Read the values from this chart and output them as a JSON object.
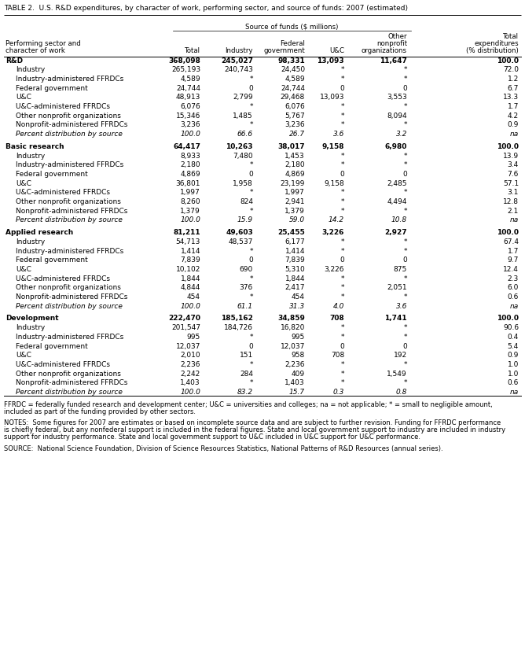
{
  "title": "TABLE 2.  U.S. R&D expenditures, by character of work, performing sector, and source of funds: 2007 (estimated)",
  "rows": [
    {
      "label": "R&D",
      "indent": 0,
      "bold": true,
      "spacer": false,
      "values": [
        "368,098",
        "245,027",
        "98,331",
        "13,093",
        "11,647",
        "100.0"
      ]
    },
    {
      "label": "Industry",
      "indent": 1,
      "bold": false,
      "spacer": false,
      "values": [
        "265,193",
        "240,743",
        "24,450",
        "*",
        "*",
        "72.0"
      ]
    },
    {
      "label": "Industry-administered FFRDCs",
      "indent": 1,
      "bold": false,
      "spacer": false,
      "values": [
        "4,589",
        "*",
        "4,589",
        "*",
        "*",
        "1.2"
      ]
    },
    {
      "label": "Federal government",
      "indent": 1,
      "bold": false,
      "spacer": false,
      "values": [
        "24,744",
        "0",
        "24,744",
        "0",
        "0",
        "6.7"
      ]
    },
    {
      "label": "U&C",
      "indent": 1,
      "bold": false,
      "spacer": false,
      "values": [
        "48,913",
        "2,799",
        "29,468",
        "13,093",
        "3,553",
        "13.3"
      ]
    },
    {
      "label": "U&C-administered FFRDCs",
      "indent": 1,
      "bold": false,
      "spacer": false,
      "values": [
        "6,076",
        "*",
        "6,076",
        "*",
        "*",
        "1.7"
      ]
    },
    {
      "label": "Other nonprofit organizations",
      "indent": 1,
      "bold": false,
      "spacer": false,
      "values": [
        "15,346",
        "1,485",
        "5,767",
        "*",
        "8,094",
        "4.2"
      ]
    },
    {
      "label": "Nonprofit-administered FFRDCs",
      "indent": 1,
      "bold": false,
      "spacer": false,
      "values": [
        "3,236",
        "*",
        "3,236",
        "*",
        "*",
        "0.9"
      ]
    },
    {
      "label": "Percent distribution by source",
      "indent": 1,
      "bold": false,
      "italic": true,
      "spacer": false,
      "values": [
        "100.0",
        "66.6",
        "26.7",
        "3.6",
        "3.2",
        "na"
      ]
    },
    {
      "label": "",
      "indent": 0,
      "bold": false,
      "spacer": true,
      "values": [
        "",
        "",
        "",
        "",
        "",
        ""
      ]
    },
    {
      "label": "Basic research",
      "indent": 0,
      "bold": true,
      "spacer": false,
      "values": [
        "64,417",
        "10,263",
        "38,017",
        "9,158",
        "6,980",
        "100.0"
      ]
    },
    {
      "label": "Industry",
      "indent": 1,
      "bold": false,
      "spacer": false,
      "values": [
        "8,933",
        "7,480",
        "1,453",
        "*",
        "*",
        "13.9"
      ]
    },
    {
      "label": "Industry-administered FFRDCs",
      "indent": 1,
      "bold": false,
      "spacer": false,
      "values": [
        "2,180",
        "*",
        "2,180",
        "*",
        "*",
        "3.4"
      ]
    },
    {
      "label": "Federal government",
      "indent": 1,
      "bold": false,
      "spacer": false,
      "values": [
        "4,869",
        "0",
        "4,869",
        "0",
        "0",
        "7.6"
      ]
    },
    {
      "label": "U&C",
      "indent": 1,
      "bold": false,
      "spacer": false,
      "values": [
        "36,801",
        "1,958",
        "23,199",
        "9,158",
        "2,485",
        "57.1"
      ]
    },
    {
      "label": "U&C-administered FFRDCs",
      "indent": 1,
      "bold": false,
      "spacer": false,
      "values": [
        "1,997",
        "*",
        "1,997",
        "*",
        "*",
        "3.1"
      ]
    },
    {
      "label": "Other nonprofit organizations",
      "indent": 1,
      "bold": false,
      "spacer": false,
      "values": [
        "8,260",
        "824",
        "2,941",
        "*",
        "4,494",
        "12.8"
      ]
    },
    {
      "label": "Nonprofit-administered FFRDCs",
      "indent": 1,
      "bold": false,
      "spacer": false,
      "values": [
        "1,379",
        "*",
        "1,379",
        "*",
        "*",
        "2.1"
      ]
    },
    {
      "label": "Percent distribution by source",
      "indent": 1,
      "bold": false,
      "italic": true,
      "spacer": false,
      "values": [
        "100.0",
        "15.9",
        "59.0",
        "14.2",
        "10.8",
        "na"
      ]
    },
    {
      "label": "",
      "indent": 0,
      "bold": false,
      "spacer": true,
      "values": [
        "",
        "",
        "",
        "",
        "",
        ""
      ]
    },
    {
      "label": "Applied research",
      "indent": 0,
      "bold": true,
      "spacer": false,
      "values": [
        "81,211",
        "49,603",
        "25,455",
        "3,226",
        "2,927",
        "100.0"
      ]
    },
    {
      "label": "Industry",
      "indent": 1,
      "bold": false,
      "spacer": false,
      "values": [
        "54,713",
        "48,537",
        "6,177",
        "*",
        "*",
        "67.4"
      ]
    },
    {
      "label": "Industry-administered FFRDCs",
      "indent": 1,
      "bold": false,
      "spacer": false,
      "values": [
        "1,414",
        "*",
        "1,414",
        "*",
        "*",
        "1.7"
      ]
    },
    {
      "label": "Federal government",
      "indent": 1,
      "bold": false,
      "spacer": false,
      "values": [
        "7,839",
        "0",
        "7,839",
        "0",
        "0",
        "9.7"
      ]
    },
    {
      "label": "U&C",
      "indent": 1,
      "bold": false,
      "spacer": false,
      "values": [
        "10,102",
        "690",
        "5,310",
        "3,226",
        "875",
        "12.4"
      ]
    },
    {
      "label": "U&C-administered FFRDCs",
      "indent": 1,
      "bold": false,
      "spacer": false,
      "values": [
        "1,844",
        "*",
        "1,844",
        "*",
        "*",
        "2.3"
      ]
    },
    {
      "label": "Other nonprofit organizations",
      "indent": 1,
      "bold": false,
      "spacer": false,
      "values": [
        "4,844",
        "376",
        "2,417",
        "*",
        "2,051",
        "6.0"
      ]
    },
    {
      "label": "Nonprofit-administered FFRDCs",
      "indent": 1,
      "bold": false,
      "spacer": false,
      "values": [
        "454",
        "*",
        "454",
        "*",
        "*",
        "0.6"
      ]
    },
    {
      "label": "Percent distribution by source",
      "indent": 1,
      "bold": false,
      "italic": true,
      "spacer": false,
      "values": [
        "100.0",
        "61.1",
        "31.3",
        "4.0",
        "3.6",
        "na"
      ]
    },
    {
      "label": "",
      "indent": 0,
      "bold": false,
      "spacer": true,
      "values": [
        "",
        "",
        "",
        "",
        "",
        ""
      ]
    },
    {
      "label": "Development",
      "indent": 0,
      "bold": true,
      "spacer": false,
      "values": [
        "222,470",
        "185,162",
        "34,859",
        "708",
        "1,741",
        "100.0"
      ]
    },
    {
      "label": "Industry",
      "indent": 1,
      "bold": false,
      "spacer": false,
      "values": [
        "201,547",
        "184,726",
        "16,820",
        "*",
        "*",
        "90.6"
      ]
    },
    {
      "label": "Industry-administered FFRDCs",
      "indent": 1,
      "bold": false,
      "spacer": false,
      "values": [
        "995",
        "*",
        "995",
        "*",
        "*",
        "0.4"
      ]
    },
    {
      "label": "Federal government",
      "indent": 1,
      "bold": false,
      "spacer": false,
      "values": [
        "12,037",
        "0",
        "12,037",
        "0",
        "0",
        "5.4"
      ]
    },
    {
      "label": "U&C",
      "indent": 1,
      "bold": false,
      "spacer": false,
      "values": [
        "2,010",
        "151",
        "958",
        "708",
        "192",
        "0.9"
      ]
    },
    {
      "label": "U&C-administered FFRDCs",
      "indent": 1,
      "bold": false,
      "spacer": false,
      "values": [
        "2,236",
        "*",
        "2,236",
        "*",
        "*",
        "1.0"
      ]
    },
    {
      "label": "Other nonprofit organizations",
      "indent": 1,
      "bold": false,
      "spacer": false,
      "values": [
        "2,242",
        "284",
        "409",
        "*",
        "1,549",
        "1.0"
      ]
    },
    {
      "label": "Nonprofit-administered FFRDCs",
      "indent": 1,
      "bold": false,
      "spacer": false,
      "values": [
        "1,403",
        "*",
        "1,403",
        "*",
        "*",
        "0.6"
      ]
    },
    {
      "label": "Percent distribution by source",
      "indent": 1,
      "bold": false,
      "italic": true,
      "spacer": false,
      "values": [
        "100.0",
        "83.2",
        "15.7",
        "0.3",
        "0.8",
        "na"
      ]
    }
  ],
  "footnote1": "FFRDC = federally funded research and development center; U&C = universities and colleges; na = not applicable; * = small to negligible amount,",
  "footnote2": "included as part of the funding provided by other sectors.",
  "notes_line1": "NOTES:  Some figures for 2007 are estimates or based on incomplete source data and are subject to further revision. Funding for FFRDC performance",
  "notes_line2": "is chiefly federal, but any nonfederal support is included in the federal figures. State and local government support to industry are included in industry",
  "notes_line3": "support for industry performance. State and local government support to U&C included in U&C support for U&C performance.",
  "source": "SOURCE:  National Science Foundation, Division of Science Resources Statistics, National Patterns of R&D Resources (annual series)."
}
